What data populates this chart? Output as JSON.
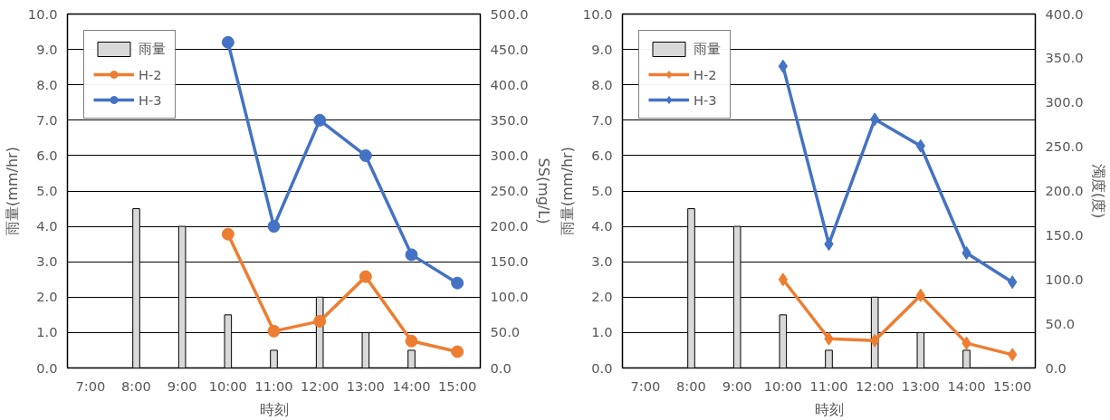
{
  "chart_data": [
    {
      "type": "bar",
      "xlabel": "時刻",
      "ylabel": "雨量(mm/hr)",
      "y2label": "SS(mg/L)",
      "categories": [
        "7:00",
        "8:00",
        "9:00",
        "10:00",
        "11:00",
        "12:00",
        "13:00",
        "14:00",
        "15:00"
      ],
      "series": [
        {
          "name": "雨量",
          "color": "#d9d9d9",
          "values": [
            null,
            4.5,
            4.0,
            1.5,
            0.5,
            2.0,
            1.0,
            0.5,
            null
          ]
        },
        {
          "name": "H-2",
          "type": "line",
          "axis": "y2",
          "color": "#ed7d31",
          "values": [
            null,
            null,
            null,
            189,
            52,
            66,
            129,
            38,
            23
          ]
        },
        {
          "name": "H-3",
          "type": "line",
          "axis": "y2",
          "color": "#4472c4",
          "values": [
            null,
            null,
            null,
            460,
            200,
            350,
            300,
            160,
            120
          ]
        }
      ],
      "ylim": [
        0,
        10
      ],
      "yticks": [
        {
          "value": 0,
          "label": "0.0"
        },
        {
          "value": 1,
          "label": "1.0"
        },
        {
          "value": 2,
          "label": "2.0"
        },
        {
          "value": 3,
          "label": "3.0"
        },
        {
          "value": 4,
          "label": "4.0"
        },
        {
          "value": 5,
          "label": "5.0"
        },
        {
          "value": 6,
          "label": "6.0"
        },
        {
          "value": 7,
          "label": "7.0"
        },
        {
          "value": 8,
          "label": "8.0"
        },
        {
          "value": 9,
          "label": "9.0"
        },
        {
          "value": 10,
          "label": "10.0"
        }
      ],
      "y2lim": [
        0,
        500
      ],
      "y2ticks": [
        {
          "value": 0,
          "label": "0.0"
        },
        {
          "value": 50,
          "label": "50.0"
        },
        {
          "value": 100,
          "label": "100.0"
        },
        {
          "value": 150,
          "label": "150.0"
        },
        {
          "value": 200,
          "label": "200.0"
        },
        {
          "value": 250,
          "label": "250.0"
        },
        {
          "value": 300,
          "label": "300.0"
        },
        {
          "value": 350,
          "label": "350.0"
        },
        {
          "value": 400,
          "label": "400.0"
        },
        {
          "value": 450,
          "label": "450.0"
        },
        {
          "value": 500,
          "label": "500.0"
        }
      ],
      "grid": "y",
      "legend": "top left",
      "marker": "circle",
      "line_style": "solid"
    },
    {
      "type": "bar",
      "xlabel": "時刻",
      "ylabel": "雨量(mm/hr)",
      "y2label": "濁度(度)",
      "categories": [
        "7:00",
        "8:00",
        "9:00",
        "10:00",
        "11:00",
        "12:00",
        "13:00",
        "14:00",
        "15:00"
      ],
      "series": [
        {
          "name": "雨量",
          "color": "#d9d9d9",
          "values": [
            null,
            4.5,
            4.0,
            1.5,
            0.5,
            2.0,
            1.0,
            0.5,
            null
          ]
        },
        {
          "name": "H-2",
          "type": "line",
          "axis": "y2",
          "color": "#ed7d31",
          "values": [
            null,
            null,
            null,
            100,
            33,
            31,
            82,
            28,
            15
          ]
        },
        {
          "name": "H-3",
          "type": "line",
          "axis": "y2",
          "color": "#4472c4",
          "values": [
            null,
            null,
            null,
            341,
            140,
            281,
            251,
            130,
            97
          ]
        }
      ],
      "ylim": [
        0,
        10
      ],
      "yticks": [
        {
          "value": 0,
          "label": "0.0"
        },
        {
          "value": 1,
          "label": "1.0"
        },
        {
          "value": 2,
          "label": "2.0"
        },
        {
          "value": 3,
          "label": "3.0"
        },
        {
          "value": 4,
          "label": "4.0"
        },
        {
          "value": 5,
          "label": "5.0"
        },
        {
          "value": 6,
          "label": "6.0"
        },
        {
          "value": 7,
          "label": "7.0"
        },
        {
          "value": 8,
          "label": "8.0"
        },
        {
          "value": 9,
          "label": "9.0"
        },
        {
          "value": 10,
          "label": "10.0"
        }
      ],
      "y2lim": [
        0,
        400
      ],
      "y2ticks": [
        {
          "value": 0,
          "label": "0.0"
        },
        {
          "value": 50,
          "label": "50.0"
        },
        {
          "value": 100,
          "label": "100.0"
        },
        {
          "value": 150,
          "label": "150.0"
        },
        {
          "value": 200,
          "label": "200.0"
        },
        {
          "value": 250,
          "label": "250.0"
        },
        {
          "value": 300,
          "label": "300.0"
        },
        {
          "value": 350,
          "label": "350.0"
        },
        {
          "value": 400,
          "label": "400.0"
        }
      ],
      "grid": "y",
      "legend": "top left",
      "marker": "diamond",
      "line_style": "solid"
    }
  ]
}
